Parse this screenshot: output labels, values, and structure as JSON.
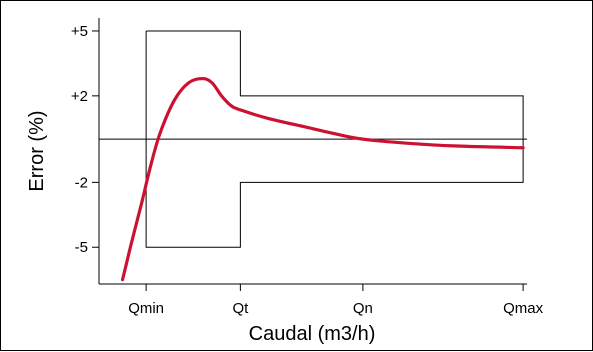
{
  "chart_data": {
    "type": "line",
    "title": "",
    "xlabel": "Caudal (m3/h)",
    "ylabel": "Error (%)",
    "x_ticks": [
      "Qmin",
      "Qt",
      "Qn",
      "Qmax"
    ],
    "y_ticks": [
      {
        "label": "+5",
        "value": 5
      },
      {
        "label": "+2",
        "value": 2
      },
      {
        "label": "-2",
        "value": -2
      },
      {
        "label": "-5",
        "value": -5
      }
    ],
    "x_positions": {
      "Qmin": 1,
      "Qt": 2,
      "Qn": 3.3,
      "Qmax": 5
    },
    "xlim": [
      0.5,
      5.02
    ],
    "ylim": [
      -6.7,
      5.6
    ],
    "grid": false,
    "zero_line": true,
    "tolerance_envelope": [
      [
        1,
        5
      ],
      [
        2,
        5
      ],
      [
        2,
        2
      ],
      [
        5,
        2
      ],
      [
        5,
        -2
      ],
      [
        2,
        -2
      ],
      [
        2,
        -5
      ],
      [
        1,
        -5
      ],
      [
        1,
        5
      ]
    ],
    "series": [
      {
        "color": "#cc1133",
        "points": [
          [
            0.75,
            -6.5
          ],
          [
            0.85,
            -4.7
          ],
          [
            0.95,
            -3.0
          ],
          [
            1.05,
            -1.2
          ],
          [
            1.15,
            0.3
          ],
          [
            1.3,
            1.8
          ],
          [
            1.45,
            2.6
          ],
          [
            1.6,
            2.8
          ],
          [
            1.7,
            2.6
          ],
          [
            1.8,
            2.0
          ],
          [
            1.9,
            1.55
          ],
          [
            2.0,
            1.35
          ],
          [
            2.3,
            0.95
          ],
          [
            2.7,
            0.55
          ],
          [
            3.0,
            0.25
          ],
          [
            3.3,
            0.0
          ],
          [
            3.8,
            -0.2
          ],
          [
            4.3,
            -0.32
          ],
          [
            5.0,
            -0.4
          ]
        ]
      }
    ]
  }
}
